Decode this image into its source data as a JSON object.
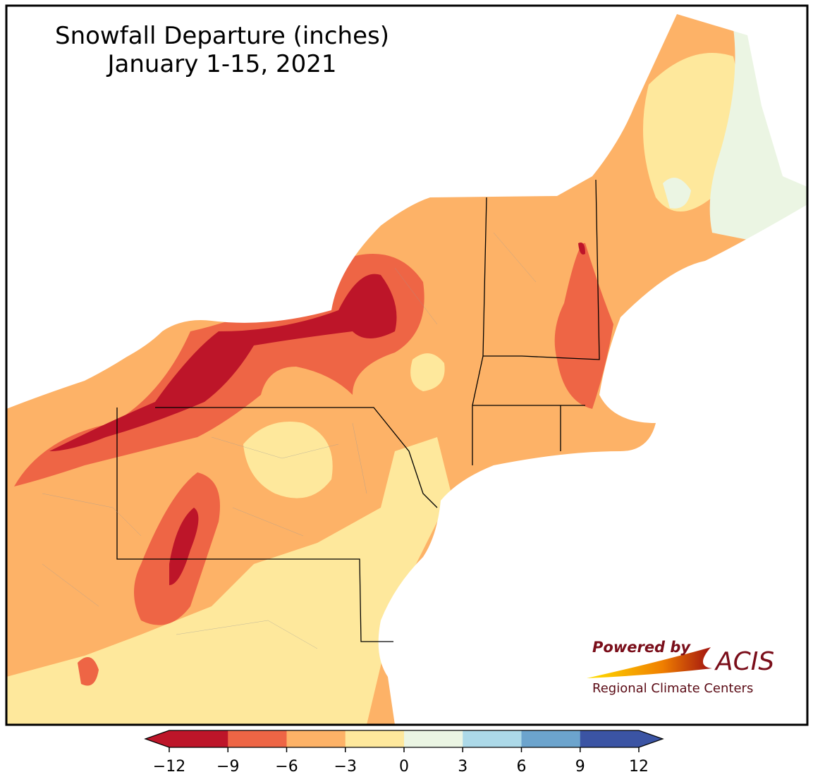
{
  "title": "Snowfall Departure (inches)",
  "subtitle": "January 1-15, 2021",
  "colorbar": {
    "lim": [
      -12,
      12
    ],
    "ticks": [
      {
        "value": -12,
        "label": "−12"
      },
      {
        "value": -9,
        "label": "−9"
      },
      {
        "value": -6,
        "label": "−6"
      },
      {
        "value": -3,
        "label": "−3"
      },
      0,
      3,
      6,
      9,
      12
    ],
    "colors": [
      "#bd1529",
      "#ee6545",
      "#fdb267",
      "#fee89c",
      "#ebf5e3",
      "#acd9e8",
      "#6ca4cd",
      "#3b54a4"
    ]
  },
  "logo": {
    "powered_by": "Powered by",
    "name": "ACIS",
    "org": "Regional Climate Centers"
  }
}
